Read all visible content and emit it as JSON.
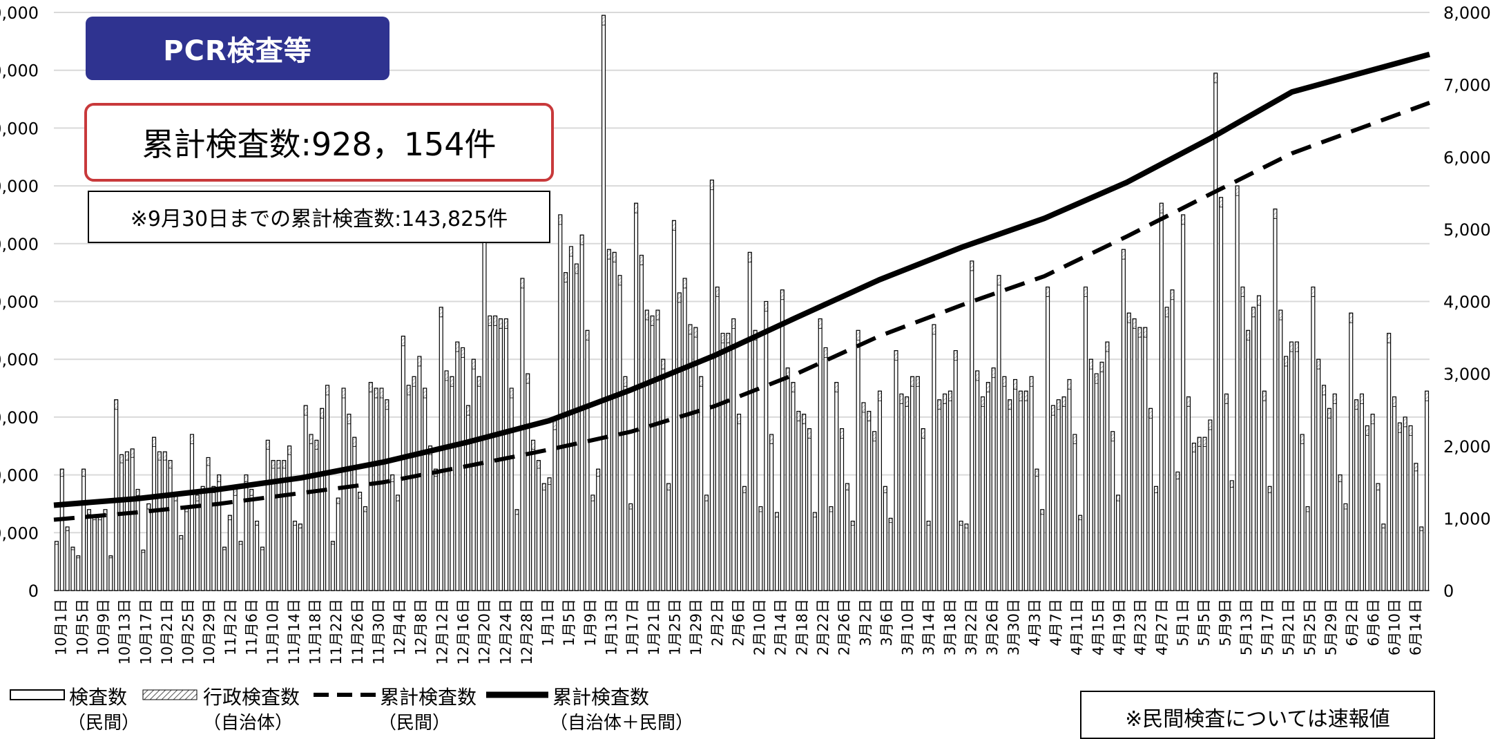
{
  "chart_data": {
    "type": "bar",
    "title": "PCR検査等",
    "total_label": "累計検査数:928，154件",
    "sept_label": "※9月30日までの累計検査数:143,825件",
    "note": "※民間検査については速報値",
    "y_left": {
      "ticks": [
        "0",
        "0,000",
        "0,000",
        "0,000",
        "0,000",
        "0,000",
        "0,000",
        "0,000",
        "0,000",
        "0,000",
        "0,000"
      ]
    },
    "y_right": {
      "ticks": [
        "0",
        "1,000",
        "2,000",
        "3,000",
        "4,000",
        "5,000",
        "6,000",
        "7,000",
        "8,000"
      ],
      "ylim": [
        0,
        8000
      ]
    },
    "x_tick_labels": [
      "10月1日",
      "10月5日",
      "10月9日",
      "10月13日",
      "10月17日",
      "10月21日",
      "10月25日",
      "10月29日",
      "11月2日",
      "11月6日",
      "11月10日",
      "11月14日",
      "11月18日",
      "11月22日",
      "11月26日",
      "11月30日",
      "12月4日",
      "12月8日",
      "12月12日",
      "12月16日",
      "12月20日",
      "12月24日",
      "12月28日",
      "1月1日",
      "1月5日",
      "1月9日",
      "1月13日",
      "1月17日",
      "1月21日",
      "1月25日",
      "1月29日",
      "2月2日",
      "2月6日",
      "2月10日",
      "2月14日",
      "2月18日",
      "2月22日",
      "2月26日",
      "3月2日",
      "3月6日",
      "3月10日",
      "3月14日",
      "3月18日",
      "3月22日",
      "3月26日",
      "3月30日",
      "4月3日",
      "4月7日",
      "4月11日",
      "4月15日",
      "4月19日",
      "4月23日",
      "4月27日",
      "5月1日",
      "5月5日",
      "5月9日",
      "5月13日",
      "5月17日",
      "5月21日",
      "5月25日",
      "5月29日",
      "6月2日",
      "6月6日",
      "6月10日",
      "6月14日"
    ],
    "bar_heights_fraction": [
      0.085,
      0.21,
      0.11,
      0.075,
      0.06,
      0.21,
      0.14,
      0.13,
      0.13,
      0.14,
      0.06,
      0.33,
      0.235,
      0.24,
      0.245,
      0.175,
      0.07,
      0.15,
      0.265,
      0.24,
      0.24,
      0.225,
      0.165,
      0.095,
      0.145,
      0.27,
      0.165,
      0.18,
      0.23,
      0.18,
      0.2,
      0.075,
      0.13,
      0.175,
      0.085,
      0.2,
      0.175,
      0.12,
      0.075,
      0.26,
      0.225,
      0.225,
      0.225,
      0.25,
      0.12,
      0.115,
      0.32,
      0.27,
      0.26,
      0.315,
      0.355,
      0.085,
      0.16,
      0.35,
      0.305,
      0.265,
      0.17,
      0.145,
      0.36,
      0.35,
      0.35,
      0.33,
      0.2,
      0.165,
      0.44,
      0.355,
      0.37,
      0.405,
      0.35,
      0.25,
      0.21,
      0.49,
      0.38,
      0.37,
      0.43,
      0.42,
      0.32,
      0.4,
      0.37,
      0.62,
      0.475,
      0.475,
      0.47,
      0.47,
      0.35,
      0.14,
      0.54,
      0.375,
      0.26,
      0.225,
      0.185,
      0.195,
      0.295,
      0.65,
      0.55,
      0.595,
      0.565,
      0.615,
      0.45,
      0.165,
      0.21,
      0.995,
      0.59,
      0.585,
      0.545,
      0.37,
      0.15,
      0.67,
      0.58,
      0.485,
      0.475,
      0.485,
      0.4,
      0.185,
      0.64,
      0.515,
      0.54,
      0.46,
      0.455,
      0.37,
      0.165,
      0.71,
      0.525,
      0.445,
      0.445,
      0.47,
      0.305,
      0.18,
      0.585,
      0.45,
      0.145,
      0.5,
      0.27,
      0.135,
      0.52,
      0.385,
      0.36,
      0.31,
      0.305,
      0.28,
      0.135,
      0.47,
      0.42,
      0.145,
      0.36,
      0.28,
      0.185,
      0.12,
      0.45,
      0.325,
      0.31,
      0.275,
      0.345,
      0.18,
      0.125,
      0.415,
      0.34,
      0.335,
      0.37,
      0.37,
      0.28,
      0.12,
      0.46,
      0.33,
      0.34,
      0.345,
      0.415,
      0.12,
      0.115,
      0.57,
      0.38,
      0.335,
      0.36,
      0.385,
      0.545,
      0.37,
      0.33,
      0.365,
      0.345,
      0.345,
      0.37,
      0.21,
      0.14,
      0.525,
      0.32,
      0.33,
      0.335,
      0.365,
      0.27,
      0.13,
      0.525,
      0.4,
      0.375,
      0.395,
      0.43,
      0.275,
      0.165,
      0.59,
      0.48,
      0.47,
      0.455,
      0.455,
      0.315,
      0.18,
      0.67,
      0.49,
      0.52,
      0.205,
      0.65,
      0.335,
      0.255,
      0.265,
      0.265,
      0.295,
      0.895,
      0.68,
      0.34,
      0.19,
      0.7,
      0.525,
      0.45,
      0.49,
      0.51,
      0.345,
      0.18,
      0.66,
      0.485,
      0.405,
      0.43,
      0.43,
      0.27,
      0.145,
      0.525,
      0.4,
      0.355,
      0.315,
      0.34,
      0.2,
      0.15,
      0.48,
      0.33,
      0.34,
      0.285,
      0.305,
      0.185,
      0.115,
      0.445,
      0.335,
      0.29,
      0.3,
      0.285,
      0.22,
      0.11,
      0.345
    ],
    "series": [
      {
        "name": "検査数（民間）",
        "style": "bar-outline",
        "color": "#000000"
      },
      {
        "name": "行政検査数（自治体）",
        "style": "bar-hatched",
        "color": "#555555"
      },
      {
        "name": "累計検査数（民間）",
        "style": "dashed-line",
        "axis": "right",
        "x_fraction": [
          0,
          0.06,
          0.12,
          0.18,
          0.24,
          0.3,
          0.36,
          0.42,
          0.48,
          0.54,
          0.6,
          0.66,
          0.72,
          0.78,
          0.84,
          0.9,
          1.0
        ],
        "values": [
          980,
          1080,
          1200,
          1350,
          1500,
          1720,
          1950,
          2200,
          2550,
          3000,
          3520,
          3950,
          4350,
          4900,
          5480,
          6050,
          6750
        ]
      },
      {
        "name": "累計検査数（自治体＋民間）",
        "style": "solid-line",
        "axis": "right",
        "x_fraction": [
          0,
          0.06,
          0.12,
          0.18,
          0.24,
          0.3,
          0.36,
          0.42,
          0.48,
          0.54,
          0.6,
          0.66,
          0.72,
          0.78,
          0.84,
          0.9,
          1.0
        ],
        "values": [
          1180,
          1270,
          1400,
          1560,
          1780,
          2050,
          2350,
          2780,
          3250,
          3780,
          4300,
          4750,
          5150,
          5650,
          6250,
          6900,
          7420
        ]
      }
    ],
    "legend": {
      "item1": "検査数",
      "item1_sub": "（民間）",
      "item2": "行政検査数",
      "item2_sub": "（自治体）",
      "item3": "累計検査数",
      "item3_sub": "（民間）",
      "item4": "累計検査数",
      "item4_sub": "（自治体＋民間）"
    },
    "grid": true,
    "colors": {
      "title_bg": "#2f3390",
      "total_border": "#c8393b",
      "bars": "#000000",
      "grid": "#d9d9d9"
    }
  }
}
